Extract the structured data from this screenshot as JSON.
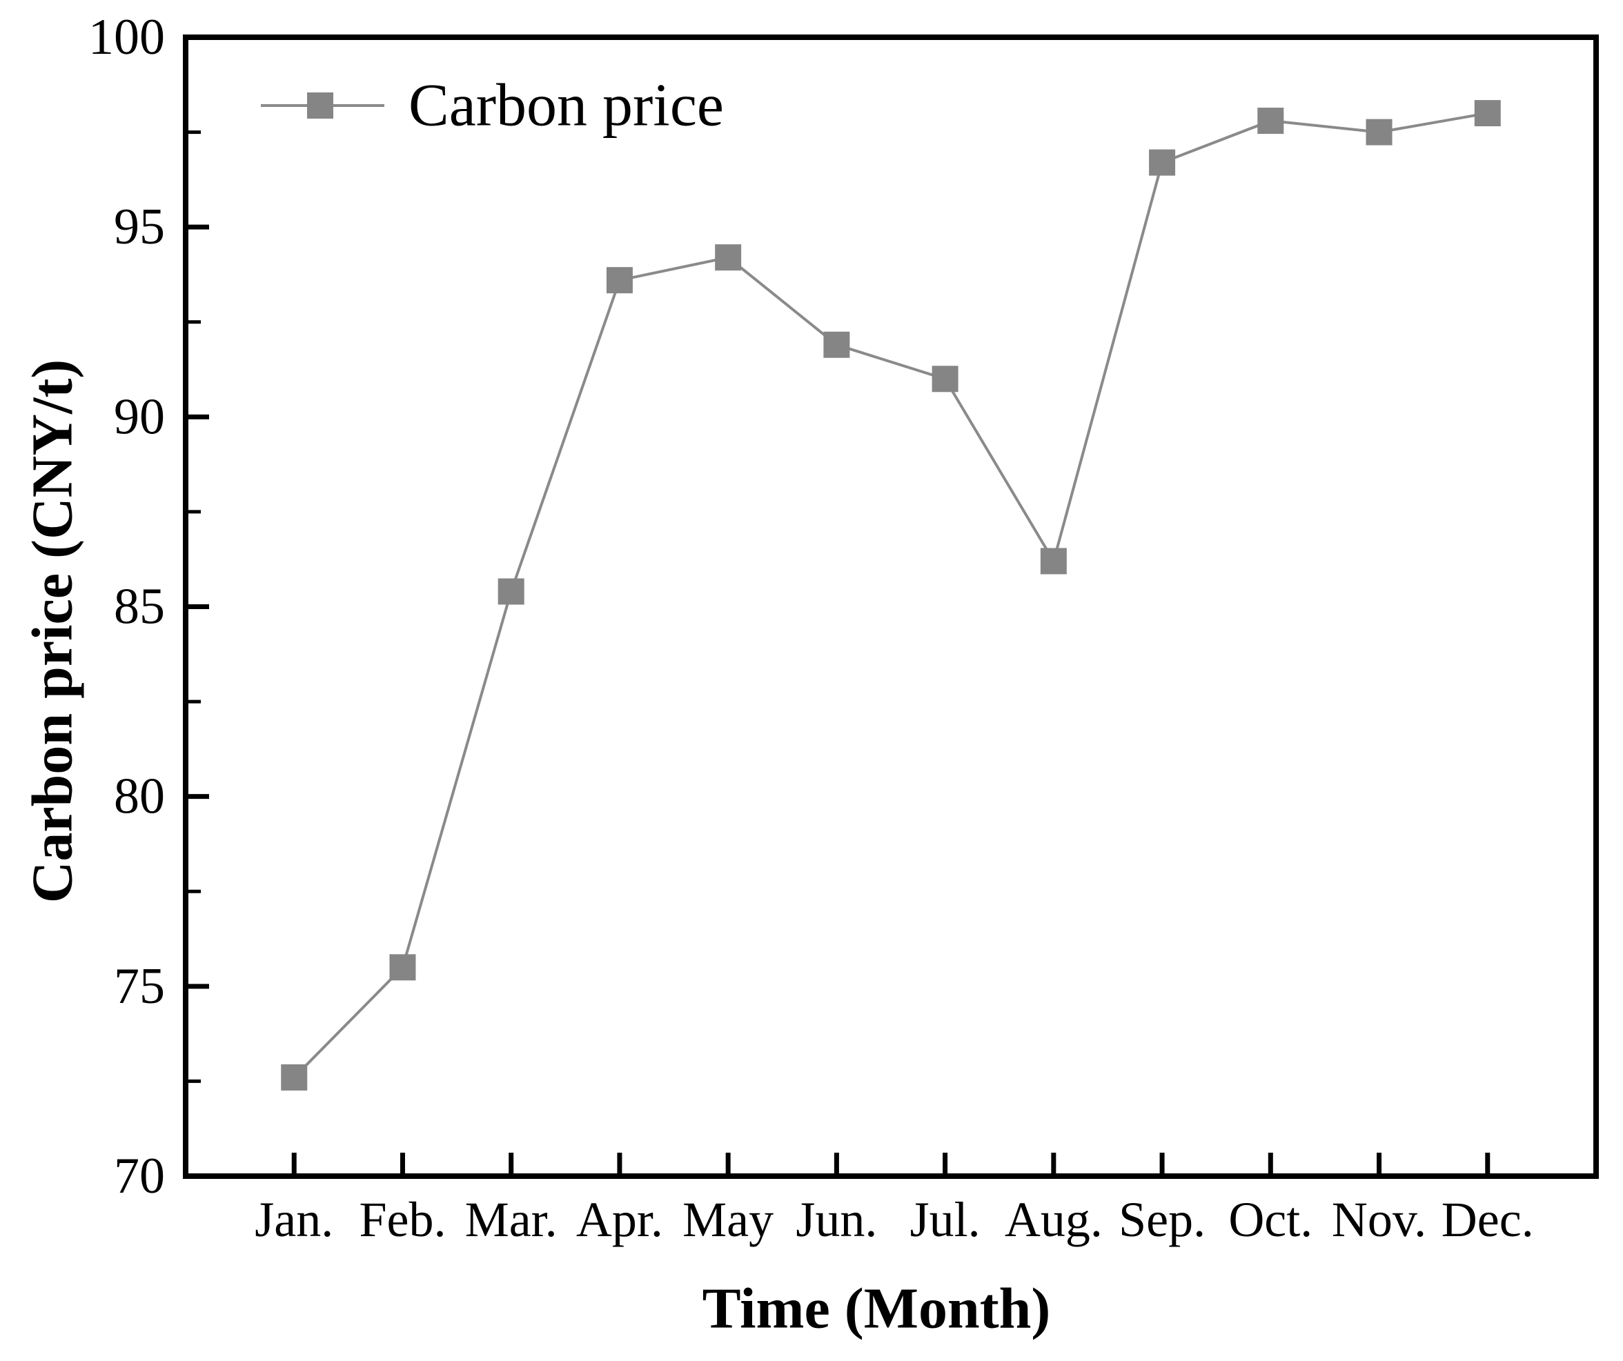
{
  "figure": {
    "background": "#ffffff"
  },
  "legend": {
    "label": "Carbon price"
  },
  "chart_data": {
    "type": "line",
    "title": "",
    "xlabel": "Time (Month)",
    "ylabel": "Carbon price (CNY/t)",
    "categories": [
      "Jan.",
      "Feb.",
      "Mar.",
      "Apr.",
      "May",
      "Jun.",
      "Jul.",
      "Aug.",
      "Sep.",
      "Oct.",
      "Nov.",
      "Dec."
    ],
    "series": [
      {
        "name": "Carbon price",
        "values": [
          72.6,
          75.5,
          85.4,
          93.6,
          94.2,
          91.9,
          91.0,
          86.2,
          96.7,
          97.8,
          97.5,
          98.0
        ]
      }
    ],
    "ylim": [
      70,
      100
    ],
    "ytick_step": 5,
    "y_minor_step": 2.5,
    "yticks": [
      70,
      75,
      80,
      85,
      90,
      95,
      100
    ],
    "grid": false,
    "legend_position": "top-left-inside",
    "marker": "square",
    "colors": {
      "line": "#8a8a8a",
      "marker": "#858585",
      "axis": "#000000",
      "text": "#000000"
    }
  }
}
